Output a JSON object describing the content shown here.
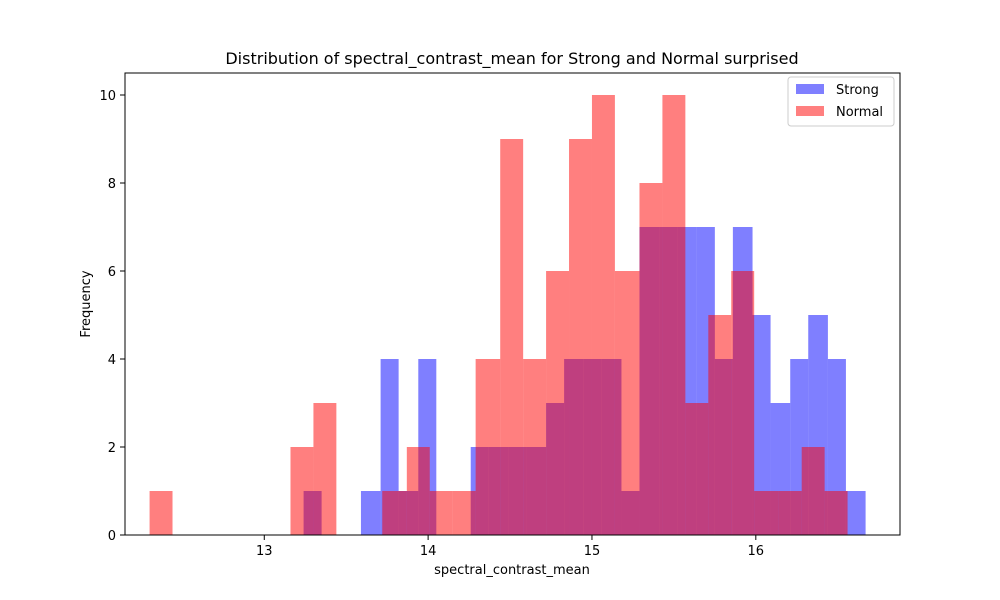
{
  "chart_data": {
    "type": "bar",
    "title": "Distribution of spectral_contrast_mean for Strong and Normal surprised",
    "xlabel": "spectral_contrast_mean",
    "ylabel": "Frequency",
    "xlim": [
      12.15,
      16.88
    ],
    "ylim": [
      0,
      10.5
    ],
    "xticks": [
      13,
      14,
      15,
      16
    ],
    "yticks": [
      0,
      2,
      4,
      6,
      8,
      10
    ],
    "legend_position": "top-right",
    "grid": false,
    "series": [
      {
        "name": "Strong",
        "color": "#0000ff",
        "opacity": 0.5,
        "bins": [
          {
            "x0": 13.24,
            "x1": 13.35,
            "count": 1
          },
          {
            "x0": 13.59,
            "x1": 13.71,
            "count": 1
          },
          {
            "x0": 13.71,
            "x1": 13.82,
            "count": 4
          },
          {
            "x0": 13.82,
            "x1": 13.94,
            "count": 1
          },
          {
            "x0": 13.94,
            "x1": 14.05,
            "count": 4
          },
          {
            "x0": 14.26,
            "x1": 14.37,
            "count": 2
          },
          {
            "x0": 14.37,
            "x1": 14.49,
            "count": 2
          },
          {
            "x0": 14.49,
            "x1": 14.6,
            "count": 2
          },
          {
            "x0": 14.6,
            "x1": 14.72,
            "count": 2
          },
          {
            "x0": 14.72,
            "x1": 14.83,
            "count": 3
          },
          {
            "x0": 14.83,
            "x1": 14.95,
            "count": 4
          },
          {
            "x0": 14.95,
            "x1": 15.06,
            "count": 4
          },
          {
            "x0": 15.06,
            "x1": 15.18,
            "count": 4
          },
          {
            "x0": 15.18,
            "x1": 15.29,
            "count": 1
          },
          {
            "x0": 15.29,
            "x1": 15.41,
            "count": 7
          },
          {
            "x0": 15.41,
            "x1": 15.52,
            "count": 7
          },
          {
            "x0": 15.52,
            "x1": 15.64,
            "count": 7
          },
          {
            "x0": 15.64,
            "x1": 15.75,
            "count": 7
          },
          {
            "x0": 15.75,
            "x1": 15.86,
            "count": 4
          },
          {
            "x0": 15.86,
            "x1": 15.98,
            "count": 7
          },
          {
            "x0": 15.98,
            "x1": 16.09,
            "count": 5
          },
          {
            "x0": 16.09,
            "x1": 16.21,
            "count": 3
          },
          {
            "x0": 16.21,
            "x1": 16.32,
            "count": 4
          },
          {
            "x0": 16.32,
            "x1": 16.44,
            "count": 5
          },
          {
            "x0": 16.44,
            "x1": 16.55,
            "count": 4
          },
          {
            "x0": 16.55,
            "x1": 16.67,
            "count": 1
          }
        ]
      },
      {
        "name": "Normal",
        "color": "#ff0000",
        "opacity": 0.5,
        "bins": [
          {
            "x0": 12.3,
            "x1": 12.44,
            "count": 1
          },
          {
            "x0": 13.16,
            "x1": 13.3,
            "count": 2
          },
          {
            "x0": 13.3,
            "x1": 13.44,
            "count": 3
          },
          {
            "x0": 13.72,
            "x1": 13.87,
            "count": 1
          },
          {
            "x0": 13.87,
            "x1": 14.01,
            "count": 2
          },
          {
            "x0": 14.01,
            "x1": 14.15,
            "count": 1
          },
          {
            "x0": 14.15,
            "x1": 14.29,
            "count": 1
          },
          {
            "x0": 14.29,
            "x1": 14.44,
            "count": 4
          },
          {
            "x0": 14.44,
            "x1": 14.58,
            "count": 9
          },
          {
            "x0": 14.58,
            "x1": 14.72,
            "count": 4
          },
          {
            "x0": 14.72,
            "x1": 14.86,
            "count": 6
          },
          {
            "x0": 14.86,
            "x1": 15.0,
            "count": 9
          },
          {
            "x0": 15.0,
            "x1": 15.14,
            "count": 10
          },
          {
            "x0": 15.14,
            "x1": 15.29,
            "count": 6
          },
          {
            "x0": 15.29,
            "x1": 15.43,
            "count": 8
          },
          {
            "x0": 15.43,
            "x1": 15.57,
            "count": 10
          },
          {
            "x0": 15.57,
            "x1": 15.71,
            "count": 3
          },
          {
            "x0": 15.71,
            "x1": 15.85,
            "count": 5
          },
          {
            "x0": 15.85,
            "x1": 15.99,
            "count": 6
          },
          {
            "x0": 15.99,
            "x1": 16.14,
            "count": 1
          },
          {
            "x0": 16.14,
            "x1": 16.28,
            "count": 1
          },
          {
            "x0": 16.28,
            "x1": 16.42,
            "count": 2
          },
          {
            "x0": 16.42,
            "x1": 16.56,
            "count": 1
          }
        ]
      }
    ]
  }
}
